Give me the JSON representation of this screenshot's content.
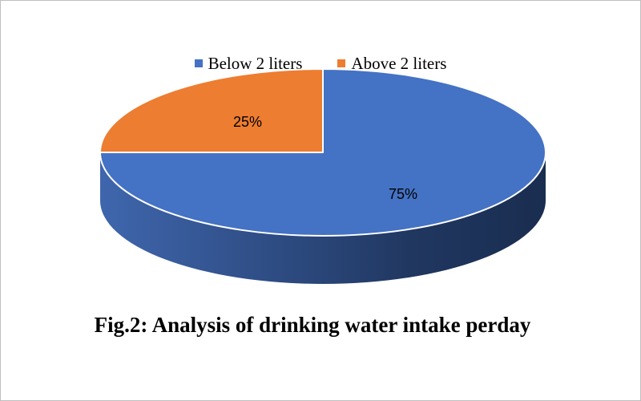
{
  "chart_data": {
    "type": "pie",
    "title": "Fig.2: Analysis of drinking water intake perday",
    "categories": [
      "Below 2 liters",
      "Above 2 liters"
    ],
    "values": [
      75,
      25
    ],
    "labels": [
      "75%",
      "25%"
    ],
    "colors": [
      "#4472C4",
      "#ED7D31"
    ],
    "legend_position": "top"
  }
}
